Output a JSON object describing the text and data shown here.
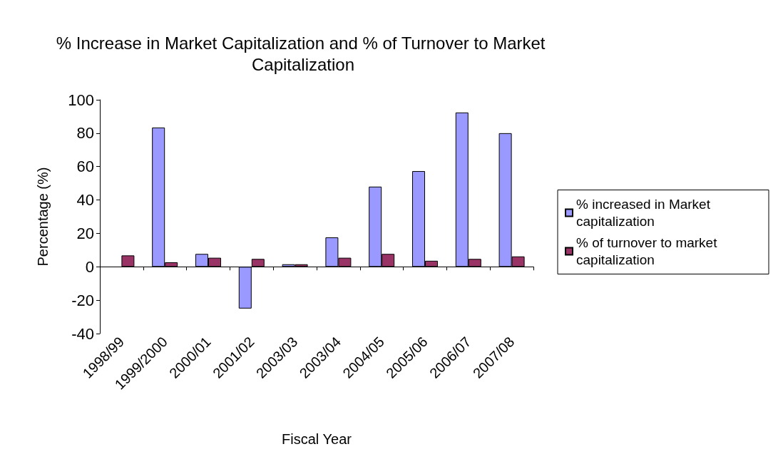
{
  "chart_data": {
    "type": "bar",
    "title": "% Increase in Market Capitalization and % of Turnover to Market Capitalization",
    "xlabel": "Fiscal Year",
    "ylabel": "Percentage (%)",
    "categories": [
      "1998/99",
      "1999/2000",
      "2000/01",
      "2001/02",
      "2003/03",
      "2003/04",
      "2004/05",
      "2005/06",
      "2006/07",
      "2007/08"
    ],
    "series": [
      {
        "name": "% increased in Market capitalization",
        "color": "#9999ff",
        "values": [
          null,
          83.4,
          7.7,
          -25,
          1.5,
          17.6,
          48,
          57.3,
          92.4,
          80
        ]
      },
      {
        "name": "% of turnover to market capitalization",
        "color": "#993366",
        "values": [
          6.8,
          2.7,
          5.4,
          4.7,
          1.5,
          5.4,
          7.7,
          3.6,
          4.7,
          6.2
        ]
      }
    ],
    "ylim": [
      -40,
      100
    ],
    "yticks": [
      -40,
      -20,
      0,
      20,
      40,
      60,
      80,
      100
    ],
    "legend": "right"
  }
}
